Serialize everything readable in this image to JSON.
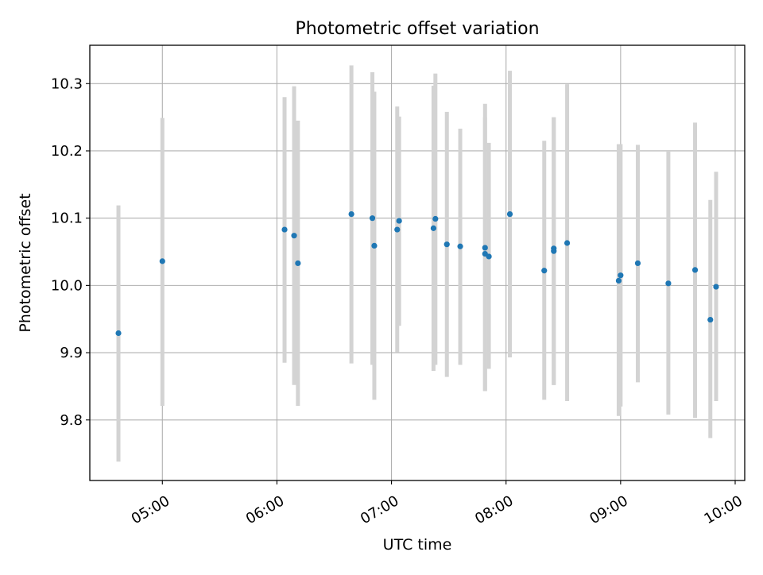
{
  "chart_data": {
    "type": "scatter",
    "title": "Photometric offset variation",
    "xlabel": "UTC time",
    "ylabel": "Photometric offset",
    "xlim": [
      "04:22",
      "10:05"
    ],
    "ylim": [
      9.71,
      10.357
    ],
    "grid": true,
    "x_ticks": [
      "05:00",
      "06:00",
      "07:00",
      "08:00",
      "09:00",
      "10:00"
    ],
    "y_ticks": [
      9.8,
      9.9,
      10.0,
      10.1,
      10.2,
      10.3
    ],
    "y_tick_labels": [
      "9.8",
      "9.9",
      "10.0",
      "10.1",
      "10.2",
      "10.3"
    ],
    "colors": {
      "point": "#1f77b4",
      "errorbar": "#d3d3d3",
      "grid": "#b0b0b0",
      "axes": "#000000"
    },
    "series": [
      {
        "points": [
          {
            "x": "04:37",
            "y": 9.929,
            "ylow": 9.738,
            "yhigh": 10.119
          },
          {
            "x": "05:00",
            "y": 10.036,
            "ylow": 9.821,
            "yhigh": 10.249
          },
          {
            "x": "06:04",
            "y": 10.083,
            "ylow": 9.885,
            "yhigh": 10.28
          },
          {
            "x": "06:09",
            "y": 10.074,
            "ylow": 9.852,
            "yhigh": 10.296
          },
          {
            "x": "06:11",
            "y": 10.033,
            "ylow": 9.821,
            "yhigh": 10.245
          },
          {
            "x": "06:39",
            "y": 10.106,
            "ylow": 9.884,
            "yhigh": 10.327
          },
          {
            "x": "06:50",
            "y": 10.1,
            "ylow": 9.882,
            "yhigh": 10.317
          },
          {
            "x": "06:51",
            "y": 10.059,
            "ylow": 9.83,
            "yhigh": 10.288
          },
          {
            "x": "07:03",
            "y": 10.083,
            "ylow": 9.901,
            "yhigh": 10.266
          },
          {
            "x": "07:04",
            "y": 10.096,
            "ylow": 9.94,
            "yhigh": 10.251
          },
          {
            "x": "07:22",
            "y": 10.085,
            "ylow": 9.873,
            "yhigh": 10.297
          },
          {
            "x": "07:23",
            "y": 10.099,
            "ylow": 9.882,
            "yhigh": 10.315
          },
          {
            "x": "07:29",
            "y": 10.061,
            "ylow": 9.864,
            "yhigh": 10.258
          },
          {
            "x": "07:36",
            "y": 10.058,
            "ylow": 9.882,
            "yhigh": 10.233
          },
          {
            "x": "07:49",
            "y": 10.047,
            "ylow": 9.843,
            "yhigh": 10.25
          },
          {
            "x": "07:49",
            "y": 10.056,
            "ylow": 9.843,
            "yhigh": 10.27
          },
          {
            "x": "07:51",
            "y": 10.043,
            "ylow": 9.876,
            "yhigh": 10.212
          },
          {
            "x": "08:02",
            "y": 10.106,
            "ylow": 9.893,
            "yhigh": 10.319
          },
          {
            "x": "08:20",
            "y": 10.022,
            "ylow": 9.83,
            "yhigh": 10.215
          },
          {
            "x": "08:25",
            "y": 10.051,
            "ylow": 9.852,
            "yhigh": 10.25
          },
          {
            "x": "08:25",
            "y": 10.055,
            "ylow": 9.852,
            "yhigh": 10.25
          },
          {
            "x": "08:32",
            "y": 10.063,
            "ylow": 9.828,
            "yhigh": 10.299
          },
          {
            "x": "08:59",
            "y": 10.007,
            "ylow": 9.806,
            "yhigh": 10.21
          },
          {
            "x": "09:00",
            "y": 10.015,
            "ylow": 9.82,
            "yhigh": 10.21
          },
          {
            "x": "09:09",
            "y": 10.033,
            "ylow": 9.856,
            "yhigh": 10.209
          },
          {
            "x": "09:25",
            "y": 10.003,
            "ylow": 9.808,
            "yhigh": 10.2
          },
          {
            "x": "09:39",
            "y": 10.023,
            "ylow": 9.803,
            "yhigh": 10.242
          },
          {
            "x": "09:47",
            "y": 9.949,
            "ylow": 9.773,
            "yhigh": 10.127
          },
          {
            "x": "09:50",
            "y": 9.998,
            "ylow": 9.828,
            "yhigh": 10.169
          }
        ]
      }
    ]
  }
}
